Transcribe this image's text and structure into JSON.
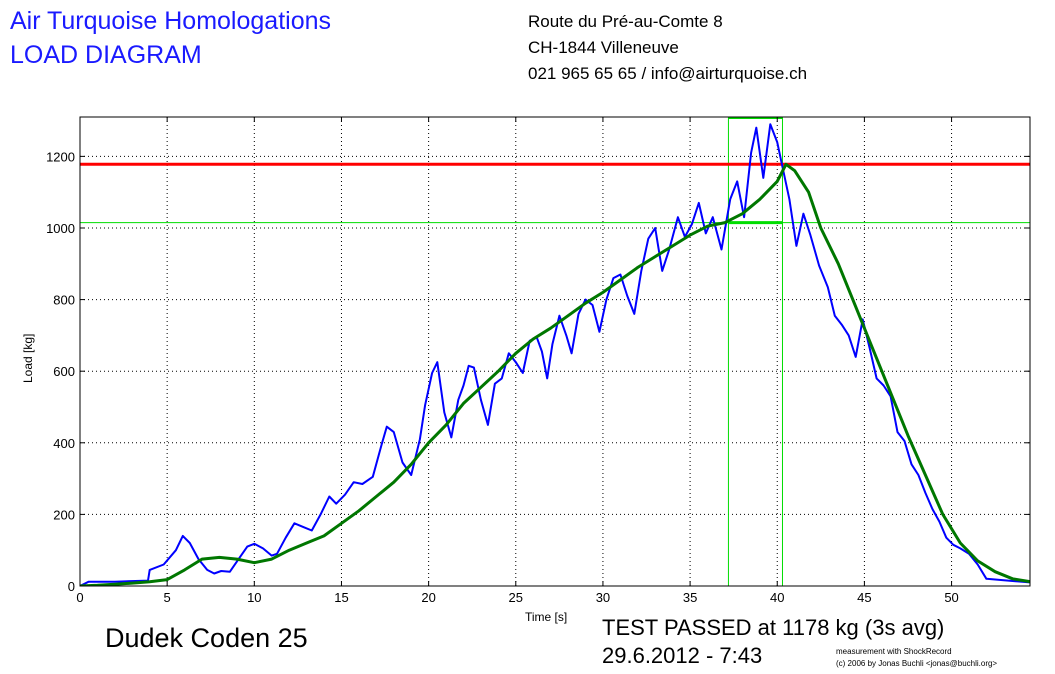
{
  "header": {
    "company": "Air Turquoise Homologations",
    "doc_title": "LOAD DIAGRAM",
    "address_line1": "Route du Pré-au-Comte 8",
    "address_line2": "CH-1844 Villeneuve",
    "contact": "021 965 65 65 / info@airturquoise.ch"
  },
  "footer": {
    "glider": "Dudek Coden 25",
    "result": "TEST PASSED at 1178 kg (3s avg)",
    "datetime": "29.6.2012 - 7:43",
    "credit_line1": "measurement with ShockRecord",
    "credit_line2": "(c) 2006 by Jonas Buchli <jonas@buchli.org>"
  },
  "colors": {
    "raw_load": "#0000ff",
    "avg_load": "#007700",
    "limit_line": "#ff0000",
    "window_lines": "#00dd00"
  },
  "chart_data": {
    "type": "line",
    "xlabel": "Time [s]",
    "ylabel": "Load [kg]",
    "xlim": [
      0,
      54.5
    ],
    "ylim": [
      0,
      1310
    ],
    "grid": true,
    "xticks": [
      0,
      5,
      10,
      15,
      20,
      25,
      30,
      35,
      40,
      45,
      50
    ],
    "yticks": [
      0,
      200,
      400,
      600,
      800,
      1000,
      1200
    ],
    "limit_line_y": 1178,
    "threshold_line_y": 1015,
    "window_x": [
      37.2,
      40.3
    ],
    "series": [
      {
        "points": [
          [
            0,
            0
          ],
          [
            0.5,
            12
          ],
          [
            2,
            12
          ],
          [
            3.9,
            15
          ],
          [
            4,
            45
          ],
          [
            4.8,
            60
          ],
          [
            5.5,
            100
          ],
          [
            5.9,
            140
          ],
          [
            6.3,
            120
          ],
          [
            6.8,
            75
          ],
          [
            7.3,
            45
          ],
          [
            7.7,
            35
          ],
          [
            8.1,
            42
          ],
          [
            8.6,
            40
          ],
          [
            9.1,
            75
          ],
          [
            9.6,
            110
          ],
          [
            10,
            118
          ],
          [
            10.5,
            105
          ],
          [
            11,
            85
          ],
          [
            11.3,
            90
          ],
          [
            11.8,
            135
          ],
          [
            12.3,
            175
          ],
          [
            12.8,
            165
          ],
          [
            13.3,
            155
          ],
          [
            13.8,
            200
          ],
          [
            14.3,
            250
          ],
          [
            14.7,
            230
          ],
          [
            15.2,
            255
          ],
          [
            15.7,
            290
          ],
          [
            16.2,
            285
          ],
          [
            16.8,
            305
          ],
          [
            17.3,
            395
          ],
          [
            17.6,
            445
          ],
          [
            18,
            430
          ],
          [
            18.5,
            345
          ],
          [
            19,
            310
          ],
          [
            19.5,
            410
          ],
          [
            19.8,
            505
          ],
          [
            20.2,
            595
          ],
          [
            20.5,
            625
          ],
          [
            20.9,
            485
          ],
          [
            21.3,
            415
          ],
          [
            21.7,
            520
          ],
          [
            22,
            560
          ],
          [
            22.3,
            615
          ],
          [
            22.6,
            610
          ],
          [
            23,
            520
          ],
          [
            23.4,
            450
          ],
          [
            23.8,
            565
          ],
          [
            24.2,
            580
          ],
          [
            24.6,
            650
          ],
          [
            25,
            625
          ],
          [
            25.4,
            595
          ],
          [
            25.8,
            685
          ],
          [
            26.2,
            695
          ],
          [
            26.5,
            655
          ],
          [
            26.8,
            580
          ],
          [
            27.1,
            675
          ],
          [
            27.5,
            755
          ],
          [
            27.9,
            700
          ],
          [
            28.2,
            650
          ],
          [
            28.6,
            760
          ],
          [
            29,
            800
          ],
          [
            29.4,
            785
          ],
          [
            29.8,
            710
          ],
          [
            30.2,
            800
          ],
          [
            30.6,
            860
          ],
          [
            31,
            870
          ],
          [
            31.4,
            810
          ],
          [
            31.8,
            760
          ],
          [
            32.2,
            880
          ],
          [
            32.6,
            970
          ],
          [
            33,
            1000
          ],
          [
            33.4,
            880
          ],
          [
            33.8,
            940
          ],
          [
            34.3,
            1030
          ],
          [
            34.7,
            975
          ],
          [
            35.1,
            1010
          ],
          [
            35.5,
            1070
          ],
          [
            35.9,
            985
          ],
          [
            36.3,
            1030
          ],
          [
            36.8,
            940
          ],
          [
            37.3,
            1080
          ],
          [
            37.7,
            1130
          ],
          [
            38.1,
            1030
          ],
          [
            38.5,
            1210
          ],
          [
            38.8,
            1280
          ],
          [
            39.2,
            1140
          ],
          [
            39.6,
            1290
          ],
          [
            40,
            1240
          ],
          [
            40.3,
            1170
          ],
          [
            40.7,
            1080
          ],
          [
            41.1,
            950
          ],
          [
            41.5,
            1040
          ],
          [
            41.9,
            980
          ],
          [
            42.4,
            895
          ],
          [
            42.9,
            835
          ],
          [
            43.3,
            755
          ],
          [
            43.7,
            730
          ],
          [
            44.1,
            700
          ],
          [
            44.5,
            640
          ],
          [
            44.9,
            745
          ],
          [
            45.3,
            665
          ],
          [
            45.7,
            580
          ],
          [
            46.1,
            560
          ],
          [
            46.5,
            530
          ],
          [
            46.9,
            430
          ],
          [
            47.3,
            405
          ],
          [
            47.7,
            340
          ],
          [
            48.1,
            310
          ],
          [
            48.5,
            260
          ],
          [
            48.9,
            215
          ],
          [
            49.3,
            180
          ],
          [
            49.7,
            135
          ],
          [
            50.1,
            115
          ],
          [
            50.5,
            105
          ],
          [
            51,
            90
          ],
          [
            51.5,
            60
          ],
          [
            52,
            20
          ],
          [
            54.5,
            10
          ]
        ]
      },
      {
        "points": [
          [
            0,
            0
          ],
          [
            1,
            2
          ],
          [
            2,
            5
          ],
          [
            3,
            8
          ],
          [
            4,
            12
          ],
          [
            5,
            18
          ],
          [
            6,
            45
          ],
          [
            7,
            75
          ],
          [
            8,
            80
          ],
          [
            9,
            75
          ],
          [
            10,
            65
          ],
          [
            11,
            75
          ],
          [
            12,
            100
          ],
          [
            13,
            120
          ],
          [
            14,
            140
          ],
          [
            15,
            175
          ],
          [
            16,
            210
          ],
          [
            17,
            250
          ],
          [
            18,
            290
          ],
          [
            19,
            340
          ],
          [
            20,
            400
          ],
          [
            21,
            450
          ],
          [
            22,
            510
          ],
          [
            23,
            555
          ],
          [
            24,
            600
          ],
          [
            25,
            650
          ],
          [
            26,
            690
          ],
          [
            27,
            720
          ],
          [
            28,
            755
          ],
          [
            29,
            790
          ],
          [
            30,
            820
          ],
          [
            31,
            855
          ],
          [
            32,
            890
          ],
          [
            33,
            920
          ],
          [
            34,
            950
          ],
          [
            35,
            980
          ],
          [
            36,
            1005
          ],
          [
            37,
            1015
          ],
          [
            38,
            1040
          ],
          [
            39,
            1080
          ],
          [
            40,
            1130
          ],
          [
            40.5,
            1178
          ],
          [
            41,
            1160
          ],
          [
            41.8,
            1100
          ],
          [
            42.5,
            1000
          ],
          [
            43.5,
            900
          ],
          [
            44.5,
            780
          ],
          [
            45.5,
            660
          ],
          [
            46.5,
            540
          ],
          [
            47.5,
            420
          ],
          [
            48.5,
            310
          ],
          [
            49.5,
            200
          ],
          [
            50.5,
            120
          ],
          [
            51.5,
            70
          ],
          [
            52.5,
            40
          ],
          [
            53.5,
            20
          ],
          [
            54.5,
            12
          ]
        ]
      }
    ]
  }
}
